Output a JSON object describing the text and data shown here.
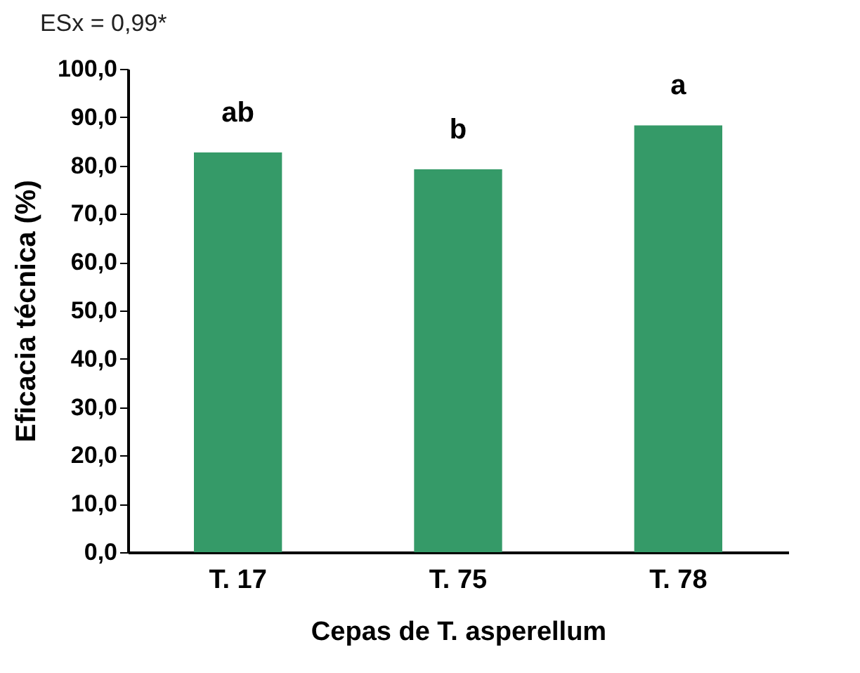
{
  "chart_data": {
    "type": "bar",
    "annotations": [
      "ESx = 0,99*"
    ],
    "xlabel": "Cepas de T. asperellum",
    "ylabel": "Eficacia técnica (%)",
    "categories": [
      "T. 17",
      "T. 75",
      "T. 78"
    ],
    "values": [
      82.7,
      79.2,
      88.3
    ],
    "value_labels": [
      "ab",
      "b",
      "a"
    ],
    "color": "#359a68",
    "ylim": [
      0,
      100
    ],
    "yticks": [
      {
        "value": 0,
        "label": "0,0"
      },
      {
        "value": 10,
        "label": "10,0"
      },
      {
        "value": 20,
        "label": "20,0"
      },
      {
        "value": 30,
        "label": "30,0"
      },
      {
        "value": 40,
        "label": "40,0"
      },
      {
        "value": 50,
        "label": "50,0"
      },
      {
        "value": 60,
        "label": "60,0"
      },
      {
        "value": 70,
        "label": "70,0"
      },
      {
        "value": 80,
        "label": "80,0"
      },
      {
        "value": 90,
        "label": "90,0"
      },
      {
        "value": 100,
        "label": "100,0"
      }
    ],
    "grid": false
  }
}
